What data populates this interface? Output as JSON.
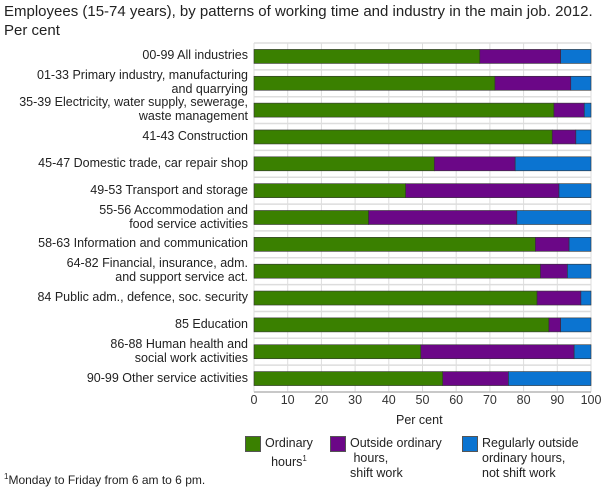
{
  "chart_data": {
    "type": "bar",
    "orientation": "horizontal",
    "stacked": true,
    "title": "Employees (15-74 years), by patterns of working time and industry in the main job. 2012. Per cent",
    "xlabel": "Per cent",
    "ylabel": "",
    "xlim": [
      0,
      100
    ],
    "xticks": [
      "0",
      "10",
      "20",
      "30",
      "40",
      "50",
      "60",
      "70",
      "80",
      "90",
      "100"
    ],
    "grid": true,
    "legend_position": "bottom",
    "categories": [
      "00-99 All industries",
      "01-33 Primary industry, manufacturing\nand quarrying",
      "35-39 Electricity, water supply, sewerage,\nwaste management",
      "41-43 Construction",
      "45-47 Domestic trade, car repair shop",
      "49-53 Transport and storage",
      "55-56 Accommodation and\nfood service activities",
      "58-63 Information and communication",
      "64-82 Financial, insurance, adm.\nand support service act.",
      "84 Public adm., defence, soc. security",
      "85 Education",
      "86-88 Human health and\nsocial work activities",
      "90-99 Other service activities"
    ],
    "series": [
      {
        "name": "Ordinary\nhours",
        "name_sup": "1",
        "color": "#3a8000",
        "values": [
          67,
          71.5,
          89,
          88.5,
          53.5,
          45,
          34,
          83.5,
          85,
          84,
          87.5,
          49.5,
          56
        ]
      },
      {
        "name": "Outside ordinary\n hours,\nshift work",
        "color": "#6b0787",
        "values": [
          24,
          22.5,
          9,
          7,
          24,
          45.5,
          44,
          10,
          8,
          13,
          3.5,
          45.5,
          19.5
        ]
      },
      {
        "name": "Regularly outside\nordinary hours,\nnot shift work",
        "color": "#0b74d1",
        "values": [
          9,
          6,
          2,
          4.5,
          22.5,
          9.5,
          22,
          6.5,
          7,
          3,
          9,
          5,
          24.5
        ]
      }
    ],
    "footnote_mark": "1",
    "footnote": "Monday to Friday from 6 am to 6 pm."
  }
}
